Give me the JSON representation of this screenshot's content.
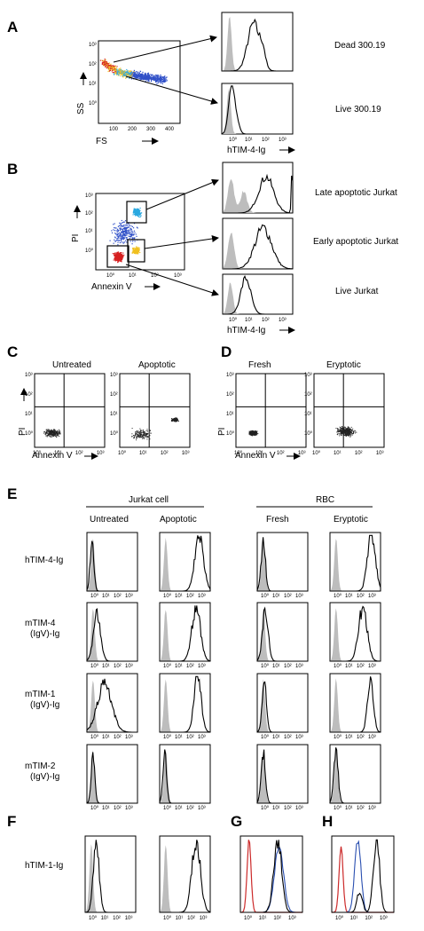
{
  "panels": {
    "A": {
      "letter": "A",
      "scatter_axis_labels": {
        "x": "FS",
        "y": "SS"
      },
      "scatter_x_ticks": [
        "100",
        "200",
        "300",
        "400"
      ],
      "scatter_y_ticks": [
        "10³",
        "10²",
        "10¹",
        "10⁰"
      ],
      "hist_xlabel": "hTIM-4-Ig",
      "hist_x_ticks": [
        "10⁰",
        "10¹",
        "10²",
        "10³"
      ],
      "populations": [
        "Dead 300.19",
        "Live 300.19"
      ]
    },
    "B": {
      "letter": "B",
      "scatter_axis_labels": {
        "x": "Annexin V",
        "y": "PI"
      },
      "scatter_ticks": [
        "10⁰",
        "10¹",
        "10²",
        "10³"
      ],
      "hist_xlabel": "hTIM-4-Ig",
      "hist_x_ticks": [
        "10⁰",
        "10¹",
        "10²",
        "10³"
      ],
      "populations": [
        "Late apoptotic Jurkat",
        "Early apoptotic Jurkat",
        "Live Jurkat"
      ]
    },
    "C": {
      "letter": "C",
      "conditions": [
        "Untreated",
        "Apoptotic"
      ],
      "axis_labels": {
        "x": "Annexin V",
        "y": "PI"
      },
      "ticks": [
        "10⁰",
        "10¹",
        "10²",
        "10³"
      ]
    },
    "D": {
      "letter": "D",
      "conditions": [
        "Fresh",
        "Eryptotic"
      ],
      "axis_labels": {
        "x": "Annexin V",
        "y": "PI"
      },
      "ticks": [
        "10⁰",
        "10¹",
        "10²",
        "10³"
      ]
    },
    "E": {
      "letter": "E",
      "group1": "Jurkat cell",
      "group2": "RBC",
      "columns": [
        "Untreated",
        "Apoptotic",
        "Fresh",
        "Eryptotic"
      ],
      "rows": [
        "hTIM-4-Ig",
        "mTIM-4\n(IgV)-Ig",
        "mTIM-1\n(IgV)-Ig",
        "mTIM-2\n(IgV)-Ig"
      ],
      "hist_x_ticks": [
        "10⁰",
        "10¹",
        "10²",
        "10³"
      ]
    },
    "F": {
      "letter": "F",
      "row_label": "hTIM-1-Ig",
      "hist_x_ticks": [
        "10⁰",
        "10¹",
        "10²",
        "10³"
      ]
    },
    "G": {
      "letter": "G",
      "hist_x_ticks": [
        "10⁰",
        "10¹",
        "10²",
        "10³"
      ]
    },
    "H": {
      "letter": "H",
      "hist_x_ticks": [
        "10⁰",
        "10¹",
        "10²",
        "10³"
      ]
    }
  },
  "colors": {
    "ink": "#000000",
    "fill": "#bdbdbd",
    "red": "#cc2a2a",
    "blue": "#2a4fb0",
    "density_hot": "#d62020",
    "density_mid": "#f0c020",
    "density_cool": "#2aa8e0",
    "density_low": "#3050c8"
  }
}
